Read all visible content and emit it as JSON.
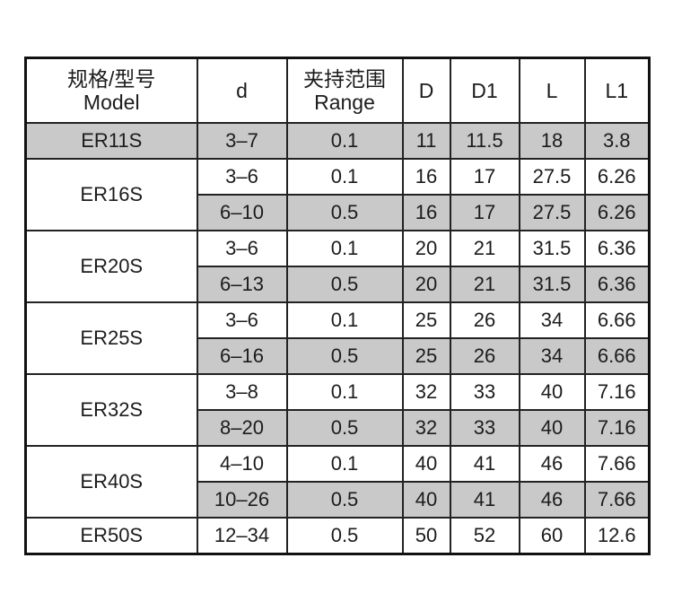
{
  "table": {
    "header": [
      [
        "规格/型号",
        "Model"
      ],
      [
        "d"
      ],
      [
        "夹持范围",
        "Range"
      ],
      [
        "D"
      ],
      [
        "D1"
      ],
      [
        "L"
      ],
      [
        "L1"
      ]
    ],
    "groups": [
      {
        "model": "ER11S",
        "rows": [
          [
            "3–7",
            "0.1",
            "11",
            "11.5",
            "18",
            "3.8"
          ]
        ]
      },
      {
        "model": "ER16S",
        "rows": [
          [
            "3–6",
            "0.1",
            "16",
            "17",
            "27.5",
            "6.26"
          ],
          [
            "6–10",
            "0.5",
            "16",
            "17",
            "27.5",
            "6.26"
          ]
        ]
      },
      {
        "model": "ER20S",
        "rows": [
          [
            "3–6",
            "0.1",
            "20",
            "21",
            "31.5",
            "6.36"
          ],
          [
            "6–13",
            "0.5",
            "20",
            "21",
            "31.5",
            "6.36"
          ]
        ]
      },
      {
        "model": "ER25S",
        "rows": [
          [
            "3–6",
            "0.1",
            "25",
            "26",
            "34",
            "6.66"
          ],
          [
            "6–16",
            "0.5",
            "25",
            "26",
            "34",
            "6.66"
          ]
        ]
      },
      {
        "model": "ER32S",
        "rows": [
          [
            "3–8",
            "0.1",
            "32",
            "33",
            "40",
            "7.16"
          ],
          [
            "8–20",
            "0.5",
            "32",
            "33",
            "40",
            "7.16"
          ]
        ]
      },
      {
        "model": "ER40S",
        "rows": [
          [
            "4–10",
            "0.1",
            "40",
            "41",
            "46",
            "7.66"
          ],
          [
            "10–26",
            "0.5",
            "40",
            "41",
            "46",
            "7.66"
          ]
        ]
      },
      {
        "model": "ER50S",
        "rows": [
          [
            "12–34",
            "0.5",
            "50",
            "52",
            "60",
            "12.6"
          ]
        ]
      }
    ]
  }
}
